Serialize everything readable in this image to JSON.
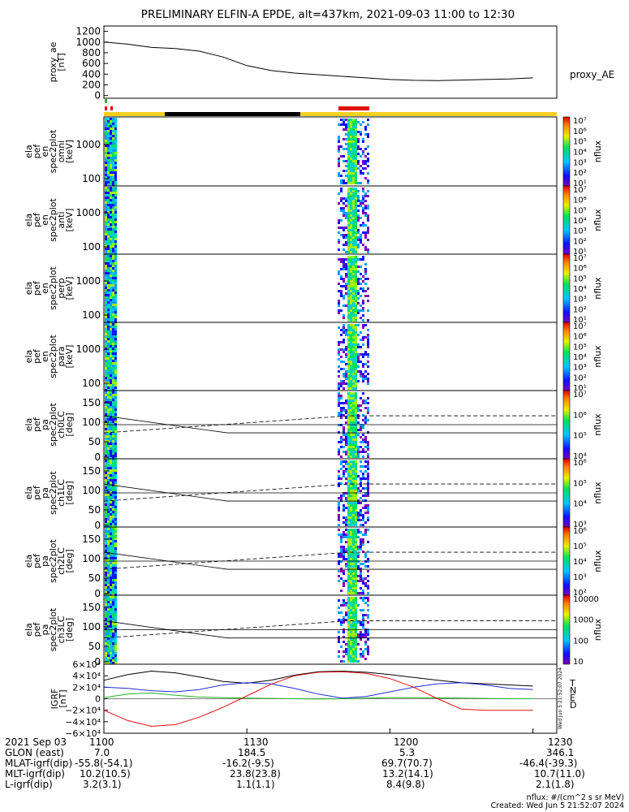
{
  "title": "PRELIMINARY ELFIN-A EPDE, alt=437km, 2021-09-03 11:00 to 12:30",
  "chart_data": [
    {
      "type": "line",
      "id": "proxy_ae",
      "ylabel": [
        "proxy_ae",
        "[nT]"
      ],
      "legend": "proxy_AE",
      "ylim": [
        -50,
        1300
      ],
      "yticks": [
        0,
        200,
        400,
        600,
        800,
        1000,
        1200
      ],
      "x_minutes": [
        0,
        5,
        10,
        15,
        20,
        25,
        30,
        35,
        40,
        45,
        50,
        55,
        60,
        65,
        70,
        75,
        80,
        85,
        90
      ],
      "values": [
        1000,
        960,
        900,
        880,
        830,
        720,
        560,
        470,
        420,
        390,
        360,
        330,
        300,
        285,
        280,
        290,
        300,
        310,
        330
      ]
    },
    {
      "type": "heatmap",
      "id": "spec-omni",
      "ylabel": [
        "ela",
        "pef",
        "en",
        "spec2plot",
        "omni",
        "[keV]"
      ],
      "yscale": "log",
      "yticks": [
        "1000",
        "100"
      ],
      "colorbar": {
        "label": "nflux",
        "ticks": [
          "10⁷",
          "10⁶",
          "10⁵",
          "10⁴",
          "10³",
          "10²",
          "10¹"
        ]
      }
    },
    {
      "type": "heatmap",
      "id": "spec-anti",
      "ylabel": [
        "ela",
        "pef",
        "en",
        "spec2plot",
        "anti",
        "[keV]"
      ],
      "yscale": "log",
      "yticks": [
        "1000",
        "100"
      ],
      "colorbar": {
        "label": "nflux",
        "ticks": [
          "10⁷",
          "10⁶",
          "10⁵",
          "10⁴",
          "10³",
          "10²",
          "10¹"
        ]
      }
    },
    {
      "type": "heatmap",
      "id": "spec-perp",
      "ylabel": [
        "ela",
        "pef",
        "en",
        "spec2plot",
        "perp",
        "[keV]"
      ],
      "yscale": "log",
      "yticks": [
        "1000",
        "100"
      ],
      "colorbar": {
        "label": "nflux",
        "ticks": [
          "10⁷",
          "10⁶",
          "10⁵",
          "10⁴",
          "10³",
          "10²",
          "10¹"
        ]
      }
    },
    {
      "type": "heatmap",
      "id": "spec-para",
      "ylabel": [
        "ela",
        "pef",
        "en",
        "spec2plot",
        "para",
        "[keV]"
      ],
      "yscale": "log",
      "yticks": [
        "1000",
        "100"
      ],
      "colorbar": {
        "label": "nflux",
        "ticks": [
          "10⁷",
          "10⁶",
          "10⁵",
          "10⁴",
          "10³",
          "10²",
          "10¹"
        ]
      }
    },
    {
      "type": "heatmap",
      "id": "pa-ch0",
      "ylabel": [
        "ela",
        "pef",
        "pa",
        "spec2plot",
        "ch0LC",
        "[deg]"
      ],
      "ylim": [
        0,
        180
      ],
      "yticks": [
        "150",
        "100",
        "50",
        "0"
      ],
      "colorbar": {
        "label": "nflux",
        "ticks": [
          "10⁷",
          "10⁶",
          "10⁵",
          "10⁴"
        ]
      }
    },
    {
      "type": "heatmap",
      "id": "pa-ch1",
      "ylabel": [
        "ela",
        "pef",
        "pa",
        "spec2plot",
        "ch1LC",
        "[deg]"
      ],
      "ylim": [
        0,
        180
      ],
      "yticks": [
        "150",
        "100",
        "50",
        "0"
      ],
      "colorbar": {
        "label": "nflux",
        "ticks": [
          "10⁶",
          "10⁵",
          "10⁴",
          "10³"
        ]
      }
    },
    {
      "type": "heatmap",
      "id": "pa-ch2",
      "ylabel": [
        "ela",
        "pef",
        "pa",
        "spec2plot",
        "ch2LC",
        "[deg]"
      ],
      "ylim": [
        0,
        180
      ],
      "yticks": [
        "150",
        "100",
        "50",
        "0"
      ],
      "colorbar": {
        "label": "nflux",
        "ticks": [
          "10⁶",
          "10⁵",
          "10⁴",
          "10³",
          "10²"
        ]
      }
    },
    {
      "type": "heatmap",
      "id": "pa-ch3",
      "ylabel": [
        "ela",
        "pef",
        "pa",
        "spec2plot",
        "ch3LC",
        "[deg]"
      ],
      "ylim": [
        0,
        180
      ],
      "yticks": [
        "150",
        "100",
        "50",
        "0"
      ],
      "colorbar": {
        "label": "nflux",
        "ticks": [
          "10000",
          "1000",
          "100",
          "10"
        ]
      }
    },
    {
      "type": "line",
      "id": "igrf",
      "ylabel": [
        "IGRF",
        "[nT]"
      ],
      "ylim": [
        -60000,
        60000
      ],
      "yticks": [
        "6×10⁴",
        "4×10⁴",
        "2×10⁴",
        "0",
        "−2×10⁴",
        "−4×10⁴",
        "−6×10⁴"
      ],
      "legend": [
        "T",
        "N",
        "E",
        "D"
      ],
      "colors": {
        "T": "#000000",
        "N": "#1f2bd6",
        "E": "#22b422",
        "D": "#e01010"
      },
      "x_minutes": [
        0,
        5,
        10,
        15,
        20,
        25,
        30,
        35,
        40,
        45,
        50,
        55,
        60,
        65,
        70,
        75,
        80,
        85,
        90
      ],
      "series": [
        {
          "name": "T",
          "values": [
            32000,
            42000,
            48000,
            45000,
            38000,
            30000,
            27000,
            32000,
            41000,
            47000,
            48000,
            46000,
            42000,
            37000,
            32000,
            28000,
            26000,
            24000,
            22000
          ]
        },
        {
          "name": "N",
          "values": [
            20000,
            18000,
            14000,
            12000,
            16000,
            24000,
            28000,
            26000,
            18000,
            8000,
            1000,
            4000,
            12000,
            20000,
            26000,
            28000,
            24000,
            18000,
            16000
          ]
        },
        {
          "name": "E",
          "values": [
            2000,
            8000,
            10000,
            6000,
            3000,
            2000,
            1000,
            500,
            0,
            -500,
            0,
            1000,
            2000,
            2000,
            1500,
            1000,
            500,
            0,
            0
          ]
        },
        {
          "name": "D",
          "values": [
            -20000,
            -38000,
            -48000,
            -45000,
            -32000,
            -15000,
            5000,
            25000,
            40000,
            46000,
            47000,
            44000,
            35000,
            20000,
            0,
            -18000,
            -20000,
            -20000,
            -20000
          ]
        }
      ]
    }
  ],
  "x_axis": {
    "ticks": [
      "1100",
      "1130",
      "1200",
      "1230"
    ],
    "tick_minutes": [
      0,
      30,
      60,
      90
    ],
    "range_minutes": [
      0,
      95
    ]
  },
  "orbit_table": {
    "rows": [
      {
        "label": "2021 Sep 03",
        "values": [
          "1100",
          "1130",
          "1200",
          "1230"
        ]
      },
      {
        "label": "GLON (east)",
        "values": [
          "7.0",
          "184.5",
          "5.3",
          "346.1"
        ]
      },
      {
        "label": "MLAT-igrf(dip)",
        "values": [
          "-55.8(-54.1)",
          "-16.2(-9.5)",
          "69.7(70.7)",
          "-46.4(-39.3)"
        ]
      },
      {
        "label": "MLT-igrf(dip)",
        "values": [
          "10.2(10.5)",
          "23.8(23.8)",
          "13.2(14.1)",
          "10.7(11.0)"
        ]
      },
      {
        "label": "L-igrf(dip)",
        "values": [
          "3.2(3.1)",
          "1.1(1.1)",
          "8.4(9.8)",
          "2.1(1.8)"
        ]
      }
    ]
  },
  "footer": {
    "units": "nflux: #/(cm^2 s sr MeV)",
    "created": "Created: Wed Jun  5 21:52:07 2024",
    "side_stamp": "Wed Jun  5 21:52:07 2024"
  },
  "colors": {
    "sunlight": "#f6d01e",
    "shadow": "#000000",
    "science_zone": "#e01010",
    "marker_green": "#22b422"
  }
}
